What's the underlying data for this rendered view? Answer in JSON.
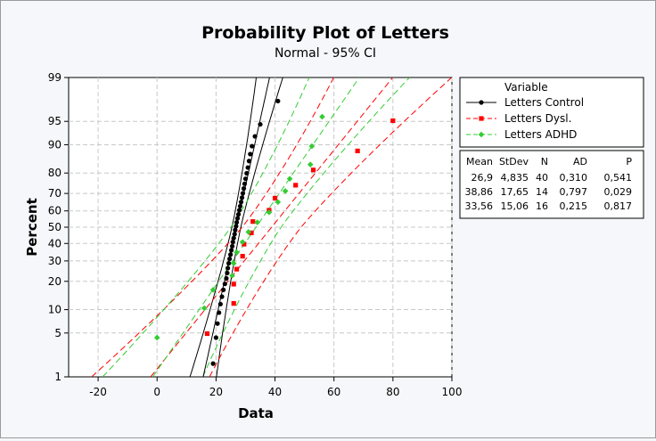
{
  "chart_data": {
    "type": "scatter",
    "title": "Probability Plot of Letters",
    "subtitle": "Normal - 95% CI",
    "xlabel": "Data",
    "ylabel": "Percent",
    "xlim": [
      -30,
      100
    ],
    "x_ticks": [
      -20,
      0,
      20,
      40,
      60,
      80,
      100
    ],
    "y_scale": "normal-probability",
    "y_ticks": [
      1,
      5,
      10,
      20,
      30,
      40,
      50,
      60,
      70,
      80,
      90,
      95,
      99
    ],
    "ylim": [
      1,
      99
    ],
    "grid": true,
    "legend_position": "right",
    "legend_title": "Variable",
    "series": [
      {
        "name": "Letters Control",
        "color": "#000000",
        "line_style": "solid",
        "marker": "circle",
        "mean": 26.9,
        "stdev": 4.835,
        "n": 40,
        "ci_halfwidth_mid": 1.5,
        "ci_halfwidth_extreme": 4.5,
        "points": [
          [
            19,
            1.7
          ],
          [
            20,
            4.3
          ],
          [
            20.5,
            6.7
          ],
          [
            21,
            9.2
          ],
          [
            21.5,
            11.6
          ],
          [
            22,
            14.0
          ],
          [
            22.5,
            16.5
          ],
          [
            23,
            18.9
          ],
          [
            23.5,
            21.3
          ],
          [
            23.8,
            23.8
          ],
          [
            24,
            26.2
          ],
          [
            24.3,
            28.7
          ],
          [
            24.6,
            31.1
          ],
          [
            24.9,
            33.5
          ],
          [
            25.2,
            36.0
          ],
          [
            25.5,
            38.4
          ],
          [
            25.7,
            40.9
          ],
          [
            26,
            43.3
          ],
          [
            26.3,
            45.7
          ],
          [
            26.5,
            48.2
          ],
          [
            26.8,
            50.6
          ],
          [
            27,
            53.0
          ],
          [
            27.3,
            55.5
          ],
          [
            27.6,
            57.9
          ],
          [
            27.9,
            60.4
          ],
          [
            28.2,
            62.8
          ],
          [
            28.5,
            65.2
          ],
          [
            28.8,
            67.7
          ],
          [
            29.1,
            70.1
          ],
          [
            29.4,
            72.6
          ],
          [
            29.7,
            75.0
          ],
          [
            30,
            77.4
          ],
          [
            30.4,
            79.9
          ],
          [
            30.8,
            82.3
          ],
          [
            31.2,
            84.8
          ],
          [
            31.6,
            87.2
          ],
          [
            32.2,
            89.6
          ],
          [
            33.2,
            92.1
          ],
          [
            35,
            94.5
          ],
          [
            41,
            97.5
          ]
        ]
      },
      {
        "name": "Letters Dysl.",
        "color": "#ff0000",
        "line_style": "dashed",
        "marker": "square",
        "mean": 38.86,
        "stdev": 17.65,
        "n": 14,
        "ci_halfwidth_mid": 10,
        "ci_halfwidth_extreme": 20,
        "points": [
          [
            17,
            4.9
          ],
          [
            26,
            11.8
          ],
          [
            26,
            18.8
          ],
          [
            27,
            25.7
          ],
          [
            29,
            32.6
          ],
          [
            29.5,
            39.6
          ],
          [
            32,
            46.5
          ],
          [
            32.5,
            53.5
          ],
          [
            38,
            60.4
          ],
          [
            40,
            67.4
          ],
          [
            47,
            74.3
          ],
          [
            53,
            81.3
          ],
          [
            68,
            88.2
          ],
          [
            80,
            95.1
          ]
        ]
      },
      {
        "name": "Letters ADHD",
        "color": "#33cc33",
        "line_style": "dashed",
        "marker": "diamond",
        "mean": 33.56,
        "stdev": 15.06,
        "n": 16,
        "ci_halfwidth_mid": 8.5,
        "ci_halfwidth_extreme": 17,
        "points": [
          [
            0,
            4.3
          ],
          [
            16,
            10.4
          ],
          [
            19,
            16.5
          ],
          [
            25.5,
            22.6
          ],
          [
            26,
            28.7
          ],
          [
            27,
            34.8
          ],
          [
            29,
            40.9
          ],
          [
            31,
            47.0
          ],
          [
            34,
            53.0
          ],
          [
            38,
            59.1
          ],
          [
            41,
            65.2
          ],
          [
            43.5,
            71.3
          ],
          [
            45,
            77.4
          ],
          [
            52,
            83.5
          ],
          [
            52.5,
            89.6
          ],
          [
            56,
            95.7
          ]
        ]
      }
    ],
    "stats_table": {
      "headers": [
        "Mean",
        "StDev",
        "N",
        "AD",
        "P"
      ],
      "rows": [
        [
          "26,9",
          "4,835",
          "40",
          "0,310",
          "0,541"
        ],
        [
          "38,86",
          "17,65",
          "14",
          "0,797",
          "0,029"
        ],
        [
          "33,56",
          "15,06",
          "16",
          "0,215",
          "0,817"
        ]
      ]
    }
  }
}
